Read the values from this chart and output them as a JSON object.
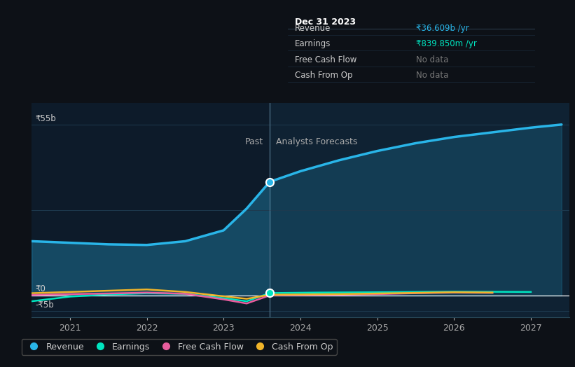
{
  "bg_color": "#0d1117",
  "plot_bg_color": "#0d1b2a",
  "forecast_bg_color": "#0f2133",
  "grid_color": "#1e3a4f",
  "ylabel_top": "₹55b",
  "ylabel_zero": "₹0",
  "ylabel_bottom": "-₹5b",
  "x_ticks": [
    2021,
    2022,
    2023,
    2024,
    2025,
    2026,
    2027
  ],
  "divider_x": 2023.6,
  "past_label": "Past",
  "forecast_label": "Analysts Forecasts",
  "revenue_past_x": [
    2020.5,
    2021.0,
    2021.5,
    2022.0,
    2022.5,
    2023.0,
    2023.3,
    2023.6
  ],
  "revenue_past_y": [
    17.5,
    17.0,
    16.5,
    16.3,
    17.5,
    21.0,
    28.0,
    36.6
  ],
  "revenue_forecast_x": [
    2023.6,
    2024.0,
    2024.5,
    2025.0,
    2025.5,
    2026.0,
    2026.5,
    2027.0,
    2027.4
  ],
  "revenue_forecast_y": [
    36.6,
    40.0,
    43.5,
    46.5,
    49.0,
    51.0,
    52.5,
    54.0,
    55.0
  ],
  "earnings_past_x": [
    2020.5,
    2021.0,
    2021.5,
    2022.0,
    2022.5,
    2023.0,
    2023.3,
    2023.6
  ],
  "earnings_past_y": [
    -1.8,
    -0.3,
    0.4,
    0.8,
    0.6,
    -0.8,
    -1.8,
    0.84
  ],
  "earnings_forecast_x": [
    2023.6,
    2024.2,
    2025.0,
    2025.5,
    2026.0,
    2026.5,
    2027.0
  ],
  "earnings_forecast_y": [
    0.84,
    1.0,
    1.1,
    1.2,
    1.3,
    1.25,
    1.2
  ],
  "fcf_past_x": [
    2020.5,
    2021.0,
    2021.5,
    2022.0,
    2022.5,
    2023.0,
    2023.3,
    2023.6
  ],
  "fcf_past_y": [
    0.2,
    0.5,
    0.7,
    1.0,
    0.6,
    -1.2,
    -2.5,
    0.1
  ],
  "fcf_forecast_x": [
    2023.6,
    2024.5,
    2025.0,
    2025.5,
    2026.0,
    2026.5
  ],
  "fcf_forecast_y": [
    0.1,
    0.3,
    0.5,
    0.8,
    1.0,
    0.9
  ],
  "cashop_past_x": [
    2020.5,
    2021.0,
    2021.5,
    2022.0,
    2022.5,
    2023.0,
    2023.3,
    2023.6
  ],
  "cashop_past_y": [
    0.8,
    1.2,
    1.6,
    2.0,
    1.2,
    -0.2,
    -1.0,
    0.3
  ],
  "cashop_forecast_x": [
    2023.6,
    2024.5,
    2025.0,
    2025.5,
    2026.0,
    2026.5
  ],
  "cashop_forecast_y": [
    0.3,
    0.5,
    0.7,
    0.9,
    1.1,
    1.0
  ],
  "revenue_color": "#29b5e8",
  "earnings_color": "#00e5c0",
  "fcf_color": "#e85d9e",
  "cashop_color": "#f0b429",
  "tooltip_bg": "#080c10",
  "tooltip_border": "#2a3a4a",
  "tooltip_title": "Dec 31 2023",
  "tooltip_revenue_label": "Revenue",
  "tooltip_revenue_val": "₹36.609b /yr",
  "tooltip_earnings_label": "Earnings",
  "tooltip_earnings_val": "₹839.850m /yr",
  "tooltip_fcf_label": "Free Cash Flow",
  "tooltip_cop_label": "Cash From Op",
  "tooltip_nodata": "No data",
  "xlim": [
    2020.5,
    2027.5
  ],
  "ylim": [
    -7,
    62
  ]
}
